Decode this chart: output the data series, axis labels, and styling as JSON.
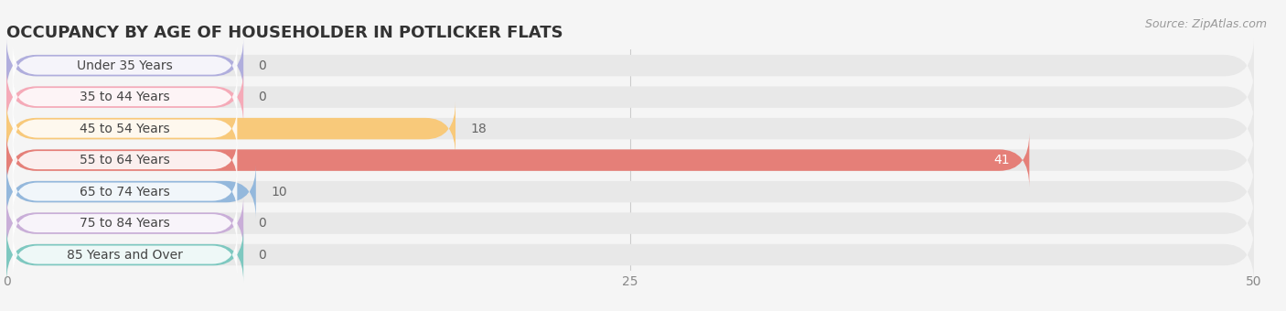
{
  "title": "OCCUPANCY BY AGE OF HOUSEHOLDER IN POTLICKER FLATS",
  "source": "Source: ZipAtlas.com",
  "categories": [
    "Under 35 Years",
    "35 to 44 Years",
    "45 to 54 Years",
    "55 to 64 Years",
    "65 to 74 Years",
    "75 to 84 Years",
    "85 Years and Over"
  ],
  "values": [
    0,
    0,
    18,
    41,
    10,
    0,
    0
  ],
  "bar_colors": [
    "#b0aedd",
    "#f5aab8",
    "#f8c97a",
    "#e57f78",
    "#94b8dc",
    "#c9aed8",
    "#7ec8c0"
  ],
  "background_color": "#f5f5f5",
  "bar_bg_color": "#e8e8e8",
  "xlim": [
    0,
    50
  ],
  "xticks": [
    0,
    25,
    50
  ],
  "title_fontsize": 13,
  "label_fontsize": 10,
  "value_fontsize": 10,
  "bar_height": 0.68,
  "label_bar_width": 9.5,
  "figsize": [
    14.06,
    3.4
  ],
  "dpi": 100
}
